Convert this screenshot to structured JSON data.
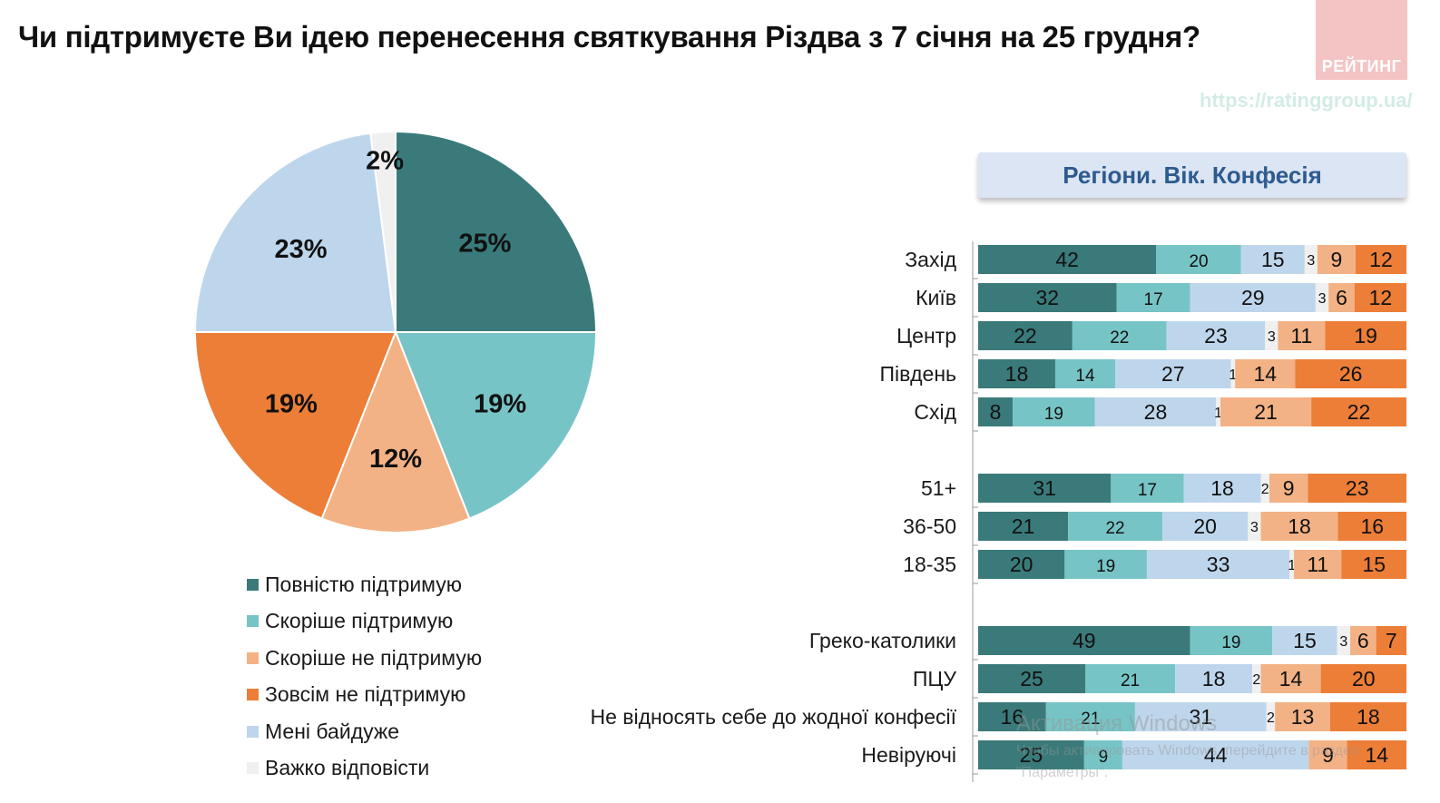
{
  "title": "Чи підтримуєте Ви ідею перенесення святкування Різдва з 7 січня на 25 грудня?",
  "logo_text": "РЕЙТИНГ",
  "url": "https://ratinggroup.ua/",
  "section_title": "Регіони. Вік. Конфесія",
  "colors": {
    "full_support": "#3a7a7a",
    "rather_support": "#77c4c6",
    "rather_not": "#f3b285",
    "not_at_all": "#ec7e37",
    "indifferent": "#bed6ec",
    "hard_to_say": "#f0f0f0"
  },
  "chart_data": [
    {
      "type": "pie",
      "series_keys": [
        "full_support",
        "rather_support",
        "rather_not",
        "not_at_all",
        "indifferent",
        "hard_to_say"
      ],
      "labels": [
        "Повністю підтримую",
        "Скоріше підтримую",
        "Скоріше не підтримую",
        "Зовсім не підтримую",
        "Мені байдуже",
        "Важко відповісти"
      ],
      "values": [
        25,
        19,
        12,
        19,
        23,
        2
      ],
      "data_labels": [
        "25%",
        "19%",
        "12%",
        "19%",
        "23%",
        "2%"
      ],
      "legend_order": [
        {
          "key": "full_support",
          "label": "Повністю підтримую"
        },
        {
          "key": "rather_support",
          "label": "Скоріше підтримую"
        },
        {
          "key": "rather_not",
          "label": "Скоріше не підтримую"
        },
        {
          "key": "not_at_all",
          "label": "Зовсім не підтримую"
        },
        {
          "key": "indifferent",
          "label": "Мені байдуже"
        },
        {
          "key": "hard_to_say",
          "label": "Важко відповісти"
        }
      ]
    },
    {
      "type": "bar",
      "orientation": "horizontal",
      "stacked": true,
      "segment_order": [
        "full_support",
        "rather_support",
        "indifferent",
        "hard_to_say",
        "rather_not",
        "not_at_all"
      ],
      "groups": [
        {
          "rows": [
            {
              "category": "Захід",
              "values": [
                42,
                20,
                15,
                3,
                9,
                12
              ]
            },
            {
              "category": "Київ",
              "values": [
                32,
                17,
                29,
                3,
                6,
                12
              ]
            },
            {
              "category": "Центр",
              "values": [
                22,
                22,
                23,
                3,
                11,
                19
              ]
            },
            {
              "category": "Південь",
              "values": [
                18,
                14,
                27,
                1,
                14,
                26
              ]
            },
            {
              "category": "Схід",
              "values": [
                8,
                19,
                28,
                1,
                21,
                22
              ]
            }
          ]
        },
        {
          "rows": [
            {
              "category": "51+",
              "values": [
                31,
                17,
                18,
                2,
                9,
                23
              ]
            },
            {
              "category": "36-50",
              "values": [
                21,
                22,
                20,
                3,
                18,
                16
              ]
            },
            {
              "category": "18-35",
              "values": [
                20,
                19,
                33,
                1,
                11,
                15
              ]
            }
          ]
        },
        {
          "rows": [
            {
              "category": "Греко-католики",
              "values": [
                49,
                19,
                15,
                3,
                6,
                7
              ]
            },
            {
              "category": "ПЦУ",
              "values": [
                25,
                21,
                18,
                2,
                14,
                20
              ]
            },
            {
              "category": "Не відносять себе до жодної конфесії",
              "values": [
                16,
                21,
                31,
                2,
                13,
                18
              ]
            },
            {
              "category": "Невіруючі",
              "values": [
                25,
                9,
                44,
                0,
                9,
                14
              ]
            }
          ]
        }
      ]
    }
  ],
  "watermark": {
    "line1": "Активация Windows",
    "line2": "Чтобы активировать Windows, перейдите в раздел \"Параметры\"."
  }
}
